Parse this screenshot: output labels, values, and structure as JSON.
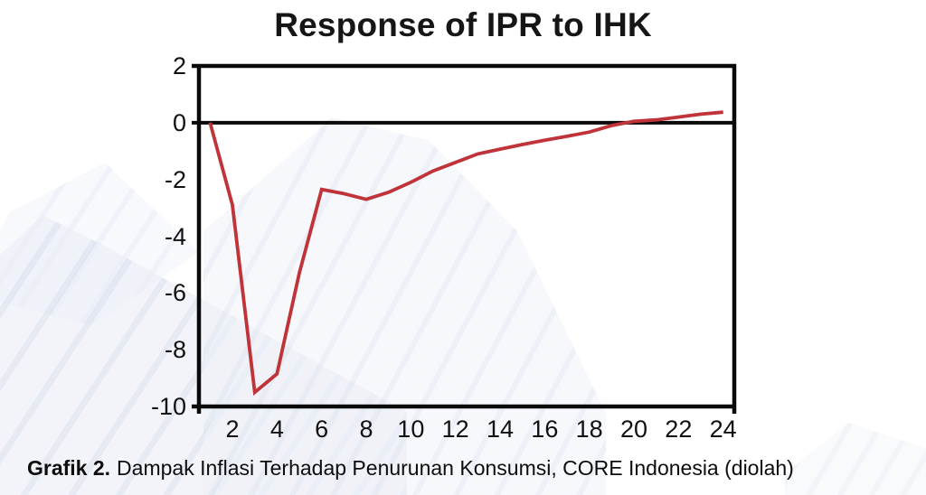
{
  "title": "Response of IPR to IHK",
  "caption": {
    "prefix": "Grafik 2.",
    "text": "Dampak Inflasi Terhadap Penurunan Konsumsi, CORE Indonesia (diolah)"
  },
  "colors": {
    "line": "#bf3339",
    "axis": "#0a0a0a",
    "text": "#111111",
    "watermark": "#dde3ef"
  },
  "chart_data": {
    "type": "line",
    "title": "Response of IPR to IHK",
    "x": [
      1,
      2,
      3,
      4,
      5,
      6,
      7,
      8,
      9,
      10,
      11,
      12,
      13,
      14,
      15,
      16,
      17,
      18,
      19,
      20,
      21,
      22,
      23,
      24
    ],
    "series": [
      {
        "name": "Response of IPR to IHK",
        "color": "#bf3339",
        "values": [
          0,
          -2.9,
          -9.5,
          -8.85,
          -5.3,
          -2.35,
          -2.5,
          -2.7,
          -2.45,
          -2.1,
          -1.7,
          -1.4,
          -1.1,
          -0.93,
          -0.77,
          -0.62,
          -0.48,
          -0.33,
          -0.1,
          0.05,
          0.1,
          0.2,
          0.3,
          0.37
        ]
      }
    ],
    "xticks": [
      2,
      4,
      6,
      8,
      10,
      12,
      14,
      16,
      18,
      20,
      22,
      24
    ],
    "yticks": [
      2,
      0,
      -2,
      -4,
      -6,
      -8,
      -10
    ],
    "xlim": [
      0.5,
      24.5
    ],
    "ylim": [
      -10,
      2
    ],
    "xlabel": "",
    "ylabel": "",
    "zero_line": true,
    "grid": false,
    "legend": false
  }
}
